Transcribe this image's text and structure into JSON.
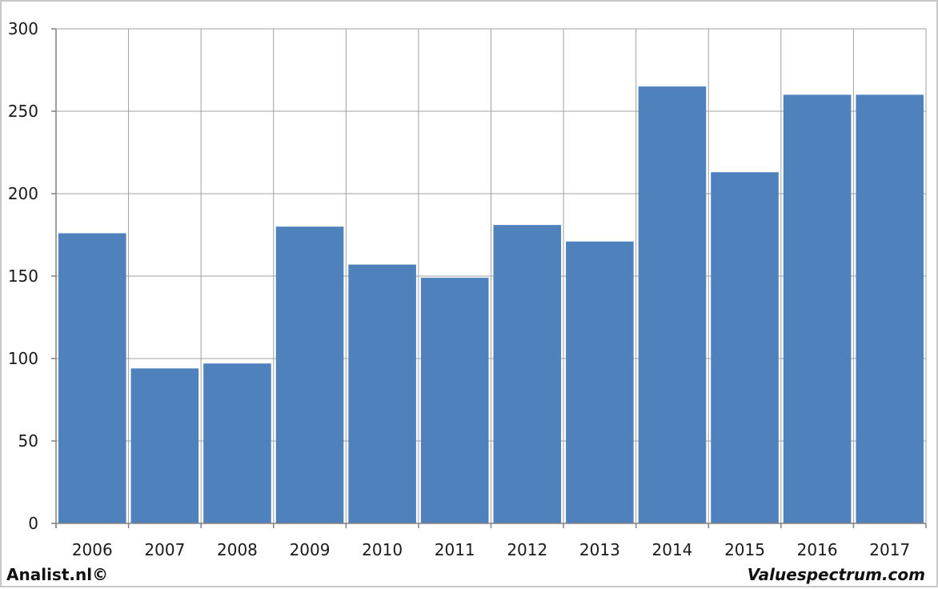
{
  "chart_data": {
    "type": "bar",
    "categories": [
      "2006",
      "2007",
      "2008",
      "2009",
      "2010",
      "2011",
      "2012",
      "2013",
      "2014",
      "2015",
      "2016",
      "2017"
    ],
    "values": [
      176,
      94,
      97,
      180,
      157,
      149,
      181,
      171,
      265,
      213,
      260,
      260
    ],
    "ylim": [
      0,
      300
    ],
    "yticks": [
      0,
      50,
      100,
      150,
      200,
      250,
      300
    ],
    "grid": true,
    "colors": {
      "bar": "#4f81bd",
      "grid": "#a0a0a0",
      "axis": "#808080"
    }
  },
  "footer": {
    "left_text": "Analist.nl©",
    "right_text": "Valuespectrum.com"
  }
}
